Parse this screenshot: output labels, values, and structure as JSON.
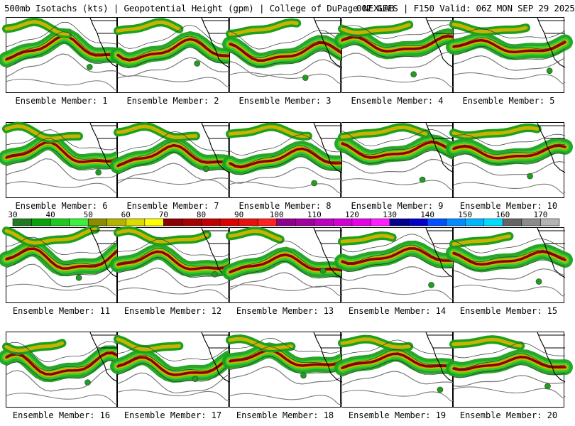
{
  "header": {
    "left": "500mb Isotachs (kts) | Geopotential Height (gpm) | College of DuPage NEXLAB",
    "right": "00Z GEFS | F150 Valid: 06Z MON SEP 29 2025"
  },
  "members": [
    "Ensemble Member: 1",
    "Ensemble Member: 2",
    "Ensemble Member: 3",
    "Ensemble Member: 4",
    "Ensemble Member: 5",
    "Ensemble Member: 6",
    "Ensemble Member: 7",
    "Ensemble Member: 8",
    "Ensemble Member: 9",
    "Ensemble Member: 10",
    "Ensemble Member: 11",
    "Ensemble Member: 12",
    "Ensemble Member: 13",
    "Ensemble Member: 14",
    "Ensemble Member: 15",
    "Ensemble Member: 16",
    "Ensemble Member: 17",
    "Ensemble Member: 18",
    "Ensemble Member: 19",
    "Ensemble Member: 20"
  ],
  "colorbar": {
    "ticks": [
      "30",
      "40",
      "50",
      "60",
      "70",
      "80",
      "90",
      "100",
      "110",
      "120",
      "130",
      "140",
      "150",
      "160",
      "170"
    ],
    "min_kts": 30,
    "max_kts": 175,
    "bins": [
      {
        "from": 30,
        "color": "#1e7b1e"
      },
      {
        "from": 35,
        "color": "#0aa00a"
      },
      {
        "from": 40,
        "color": "#1ec81e"
      },
      {
        "from": 45,
        "color": "#3cf03c"
      },
      {
        "from": 50,
        "color": "#8c8c00"
      },
      {
        "from": 55,
        "color": "#b4b400"
      },
      {
        "from": 60,
        "color": "#dcdc00"
      },
      {
        "from": 65,
        "color": "#ffff00"
      },
      {
        "from": 70,
        "color": "#8b0000"
      },
      {
        "from": 75,
        "color": "#a50000"
      },
      {
        "from": 80,
        "color": "#c00000"
      },
      {
        "from": 85,
        "color": "#dc0000"
      },
      {
        "from": 90,
        "color": "#e81010"
      },
      {
        "from": 95,
        "color": "#ff2020"
      },
      {
        "from": 100,
        "color": "#8c008c"
      },
      {
        "from": 105,
        "color": "#a000a0"
      },
      {
        "from": 110,
        "color": "#be00be"
      },
      {
        "from": 115,
        "color": "#d200d2"
      },
      {
        "from": 120,
        "color": "#e600e6"
      },
      {
        "from": 125,
        "color": "#ff1eff"
      },
      {
        "from": 130,
        "color": "#00008c"
      },
      {
        "from": 135,
        "color": "#0000c8"
      },
      {
        "from": 140,
        "color": "#0050ff"
      },
      {
        "from": 145,
        "color": "#008cff"
      },
      {
        "from": 150,
        "color": "#00b4ff"
      },
      {
        "from": 155,
        "color": "#00dcff"
      },
      {
        "from": 160,
        "color": "#646464"
      },
      {
        "from": 165,
        "color": "#8c8c8c"
      },
      {
        "from": 170,
        "color": "#b4b4b4"
      }
    ]
  },
  "colors": {
    "coast": "#000000",
    "height_contour": "#7a7a7a",
    "jet_core": "#8b0000",
    "jet_mid": "#c8b400",
    "jet_edge": "#1ea01e"
  }
}
